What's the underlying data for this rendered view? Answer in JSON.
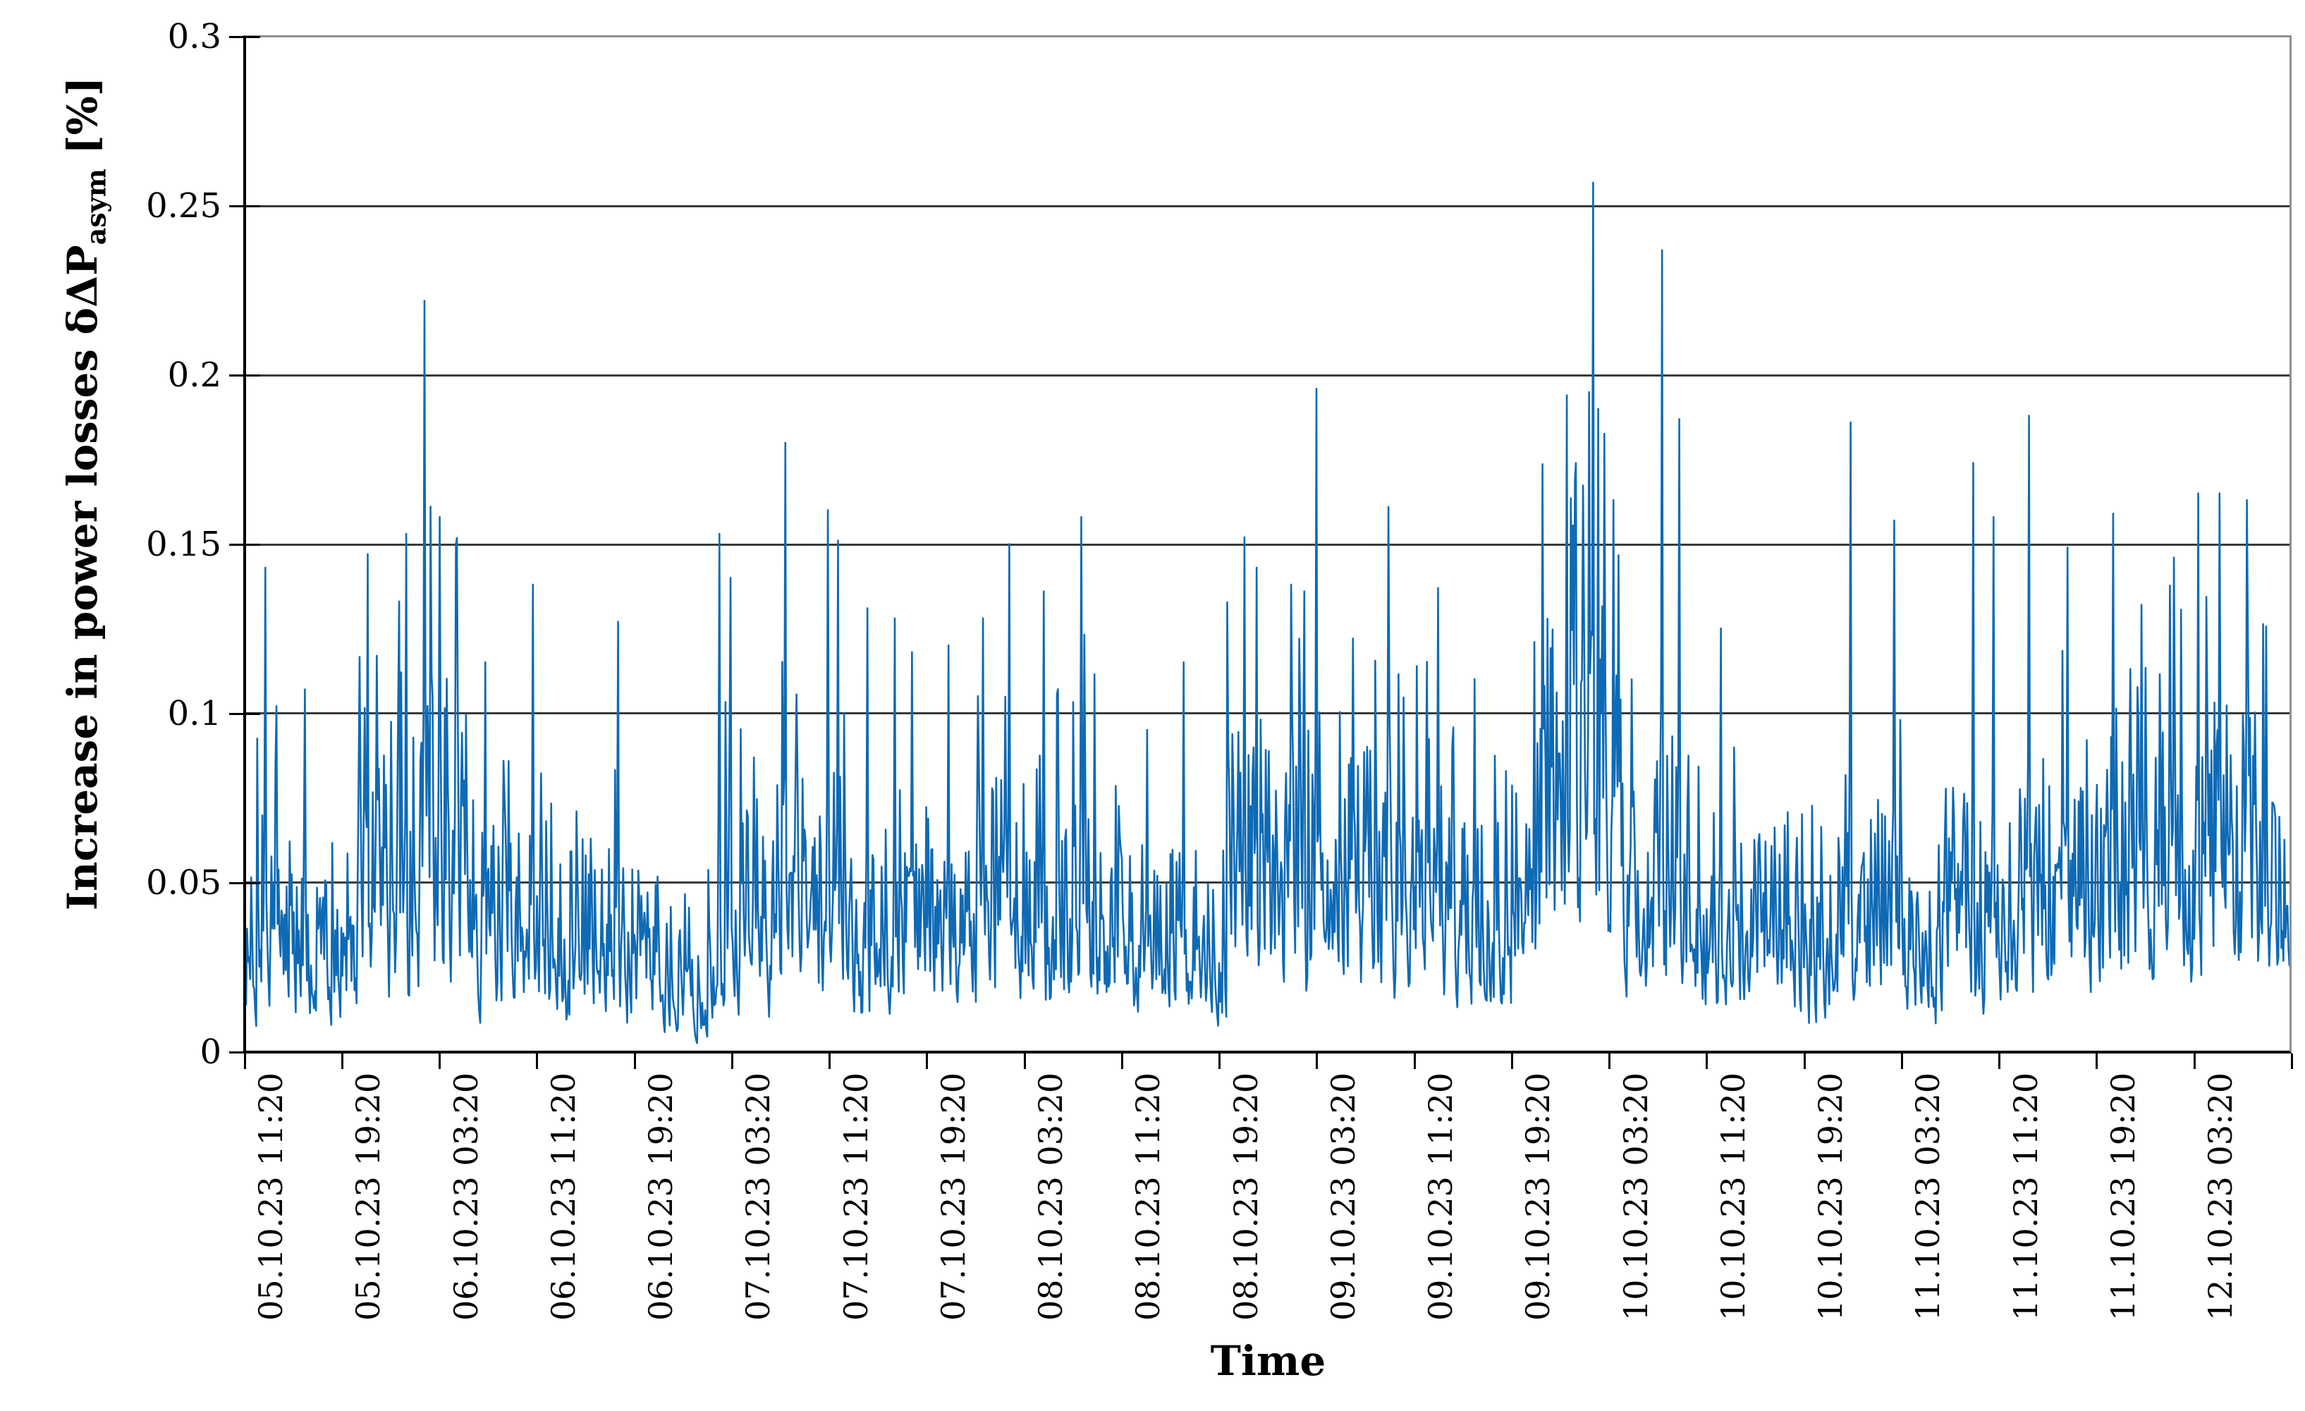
{
  "figure": {
    "background": "#ffffff",
    "colors": {
      "series": "#0E6AB5",
      "gridline": "#3A3A3A",
      "plot_border": "#8F8F8F",
      "axis": "#000000",
      "text": "#000000"
    }
  },
  "chart_data": {
    "type": "line",
    "title": "",
    "xlabel": "Time",
    "ylabel": "Increase in power losses δΔP_asym [%]",
    "ylabel_parts": {
      "prefix": "Increase in power losses δΔP",
      "subscript": "asym",
      "suffix": " [%]"
    },
    "ylim": [
      0,
      0.3
    ],
    "y_tick_step": 0.05,
    "y_tick_labels": [
      "0.3",
      "0.25",
      "0.2",
      "0.15",
      "0.1",
      "0.05",
      "0"
    ],
    "x_start": "05.10.23 11:20",
    "x_end": "12.10.23 11:20",
    "x_tick_interval_hours": 8,
    "x_tick_labels": [
      "05.10.23 11:20",
      "05.10.23 19:20",
      "06.10.23 03:20",
      "06.10.23 11:20",
      "06.10.23 19:20",
      "07.10.23 03:20",
      "07.10.23 11:20",
      "07.10.23 19:20",
      "08.10.23 03:20",
      "08.10.23 11:20",
      "08.10.23 19:20",
      "09.10.23 03:20",
      "09.10.23 11:20",
      "09.10.23 19:20",
      "10.10.23 03:20",
      "10.10.23 11:20",
      "10.10.23 19:20",
      "11.10.23 03:20",
      "11.10.23 11:20",
      "11.10.23 19:20",
      "12.10.23 03:20"
    ],
    "grid": "horizontal",
    "legend": "none",
    "series": [
      {
        "name": "Increase in power losses δΔP_asym",
        "color": "#0E6AB5",
        "style": "dense noisy minute-scale line; baseline mostly 0.005-0.09 % with sharp isolated spikes",
        "max_value": 0.257,
        "max_time": "10.10.23 02:00",
        "major_peaks": [
          {
            "f": 0.0093,
            "time": "05.10.23 12:55",
            "value": 0.143
          },
          {
            "f": 0.0148,
            "time": "05.10.23 13:50",
            "value": 0.102
          },
          {
            "f": 0.0289,
            "time": "05.10.23 16:10",
            "value": 0.107
          },
          {
            "f": 0.0596,
            "time": "05.10.23 21:20",
            "value": 0.147
          },
          {
            "f": 0.0751,
            "time": "05.10.23 23:55",
            "value": 0.133
          },
          {
            "f": 0.0785,
            "time": "06.10.23 00:30",
            "value": 0.153
          },
          {
            "f": 0.0875,
            "time": "06.10.23 02:00",
            "value": 0.222
          },
          {
            "f": 0.0947,
            "time": "06.10.23 03:15",
            "value": 0.158
          },
          {
            "f": 0.1026,
            "time": "06.10.23 04:30",
            "value": 0.15
          },
          {
            "f": 0.1171,
            "time": "06.10.23 07:00",
            "value": 0.115
          },
          {
            "f": 0.1405,
            "time": "06.10.23 10:55",
            "value": 0.138
          },
          {
            "f": 0.1822,
            "time": "06.10.23 17:55",
            "value": 0.127
          },
          {
            "f": 0.2318,
            "time": "07.10.23 02:20",
            "value": 0.153
          },
          {
            "f": 0.237,
            "time": "07.10.23 03:10",
            "value": 0.14
          },
          {
            "f": 0.2639,
            "time": "07.10.23 07:40",
            "value": 0.18
          },
          {
            "f": 0.2849,
            "time": "07.10.23 11:10",
            "value": 0.16
          },
          {
            "f": 0.2897,
            "time": "07.10.23 12:00",
            "value": 0.151
          },
          {
            "f": 0.3042,
            "time": "07.10.23 14:25",
            "value": 0.131
          },
          {
            "f": 0.3173,
            "time": "07.10.23 16:40",
            "value": 0.128
          },
          {
            "f": 0.3259,
            "time": "07.10.23 18:05",
            "value": 0.118
          },
          {
            "f": 0.3438,
            "time": "07.10.23 21:05",
            "value": 0.12
          },
          {
            "f": 0.3582,
            "time": "07.10.23 23:30",
            "value": 0.105
          },
          {
            "f": 0.3607,
            "time": "07.10.23 23:55",
            "value": 0.128
          },
          {
            "f": 0.3737,
            "time": "08.10.23 02:05",
            "value": 0.15
          },
          {
            "f": 0.3903,
            "time": "08.10.23 04:55",
            "value": 0.136
          },
          {
            "f": 0.4085,
            "time": "08.10.23 07:55",
            "value": 0.158
          },
          {
            "f": 0.4409,
            "time": "08.10.23 13:25",
            "value": 0.095
          },
          {
            "f": 0.4588,
            "time": "08.10.23 16:25",
            "value": 0.115
          },
          {
            "f": 0.4888,
            "time": "08.10.23 21:25",
            "value": 0.152
          },
          {
            "f": 0.4943,
            "time": "08.10.23 22:20",
            "value": 0.143
          },
          {
            "f": 0.5112,
            "time": "09.10.23 01:15",
            "value": 0.138
          },
          {
            "f": 0.5177,
            "time": "09.10.23 02:20",
            "value": 0.136
          },
          {
            "f": 0.5239,
            "time": "09.10.23 03:20",
            "value": 0.196
          },
          {
            "f": 0.5418,
            "time": "09.10.23 06:20",
            "value": 0.122
          },
          {
            "f": 0.5591,
            "time": "09.10.23 09:15",
            "value": 0.161
          },
          {
            "f": 0.5835,
            "time": "09.10.23 13:20",
            "value": 0.137
          },
          {
            "f": 0.6014,
            "time": "09.10.23 16:20",
            "value": 0.11
          },
          {
            "f": 0.6304,
            "time": "09.10.23 21:15",
            "value": 0.121
          },
          {
            "f": 0.6462,
            "time": "09.10.23 23:50",
            "value": 0.194
          },
          {
            "f": 0.6507,
            "time": "10.10.23 00:35",
            "value": 0.174
          },
          {
            "f": 0.6573,
            "time": "10.10.23 01:40",
            "value": 0.195
          },
          {
            "f": 0.6593,
            "time": "10.10.23 02:00",
            "value": 0.257
          },
          {
            "f": 0.6617,
            "time": "10.10.23 02:25",
            "value": 0.19
          },
          {
            "f": 0.6693,
            "time": "10.10.23 03:45",
            "value": 0.163
          },
          {
            "f": 0.6931,
            "time": "10.10.23 07:45",
            "value": 0.237
          },
          {
            "f": 0.7013,
            "time": "10.10.23 09:10",
            "value": 0.187
          },
          {
            "f": 0.7217,
            "time": "10.10.23 12:35",
            "value": 0.125
          },
          {
            "f": 0.785,
            "time": "10.10.23 23:15",
            "value": 0.186
          },
          {
            "f": 0.8067,
            "time": "11.10.23 02:50",
            "value": 0.157
          },
          {
            "f": 0.845,
            "time": "11.10.23 09:15",
            "value": 0.174
          },
          {
            "f": 0.855,
            "time": "11.10.23 11:00",
            "value": 0.158
          },
          {
            "f": 0.8725,
            "time": "11.10.23 13:55",
            "value": 0.188
          },
          {
            "f": 0.8915,
            "time": "11.10.23 17:00",
            "value": 0.149
          },
          {
            "f": 0.9139,
            "time": "11.10.23 20:50",
            "value": 0.159
          },
          {
            "f": 0.9277,
            "time": "11.10.23 23:10",
            "value": 0.132
          },
          {
            "f": 0.9435,
            "time": "12.10.23 01:50",
            "value": 0.146
          },
          {
            "f": 0.9556,
            "time": "12.10.23 03:50",
            "value": 0.165
          },
          {
            "f": 0.9656,
            "time": "12.10.23 05:30",
            "value": 0.165
          },
          {
            "f": 0.9794,
            "time": "12.10.23 07:50",
            "value": 0.163
          }
        ],
        "noise_envelope_segments": [
          [
            0.0,
            0.0286,
            0.004,
            0.075
          ],
          [
            0.0286,
            0.0527,
            0.003,
            0.05
          ],
          [
            0.0527,
            0.0734,
            0.005,
            0.09
          ],
          [
            0.0734,
            0.1078,
            0.015,
            0.115
          ],
          [
            0.1078,
            0.1491,
            0.008,
            0.07
          ],
          [
            0.1491,
            0.2008,
            0.008,
            0.06
          ],
          [
            0.2008,
            0.2284,
            0.002,
            0.038
          ],
          [
            0.2284,
            0.2594,
            0.01,
            0.075
          ],
          [
            0.2594,
            0.2938,
            0.015,
            0.085
          ],
          [
            0.2938,
            0.3248,
            0.01,
            0.058
          ],
          [
            0.3248,
            0.3593,
            0.008,
            0.062
          ],
          [
            0.3593,
            0.3834,
            0.015,
            0.08
          ],
          [
            0.3834,
            0.4178,
            0.015,
            0.085
          ],
          [
            0.4178,
            0.4592,
            0.008,
            0.06
          ],
          [
            0.4592,
            0.4798,
            0.004,
            0.042
          ],
          [
            0.4798,
            0.5212,
            0.015,
            0.1
          ],
          [
            0.5212,
            0.5556,
            0.02,
            0.09
          ],
          [
            0.5556,
            0.5901,
            0.015,
            0.08
          ],
          [
            0.5901,
            0.6314,
            0.012,
            0.068
          ],
          [
            0.6314,
            0.6727,
            0.035,
            0.13
          ],
          [
            0.6727,
            0.6882,
            0.015,
            0.08
          ],
          [
            0.6882,
            0.7072,
            0.02,
            0.09
          ],
          [
            0.7072,
            0.7416,
            0.01,
            0.065
          ],
          [
            0.7416,
            0.7761,
            0.008,
            0.055
          ],
          [
            0.7761,
            0.8105,
            0.015,
            0.075
          ],
          [
            0.8105,
            0.8312,
            0.005,
            0.048
          ],
          [
            0.8312,
            0.8587,
            0.01,
            0.07
          ],
          [
            0.8587,
            0.8794,
            0.012,
            0.075
          ],
          [
            0.8794,
            0.9104,
            0.015,
            0.085
          ],
          [
            0.9104,
            0.9311,
            0.018,
            0.09
          ],
          [
            0.9311,
            0.9586,
            0.02,
            0.095
          ],
          [
            0.9586,
            1.0001,
            0.025,
            0.105
          ]
        ],
        "render": {
          "seed": 1337,
          "n_points": 2016,
          "noise_power": 1.8,
          "burst_prob": 0.07,
          "burst_lo": 0.95,
          "burst_hi": 1.45,
          "persistence": 0.6,
          "min_value": 0.002,
          "max_value_cap": 0.28
        }
      }
    ]
  }
}
